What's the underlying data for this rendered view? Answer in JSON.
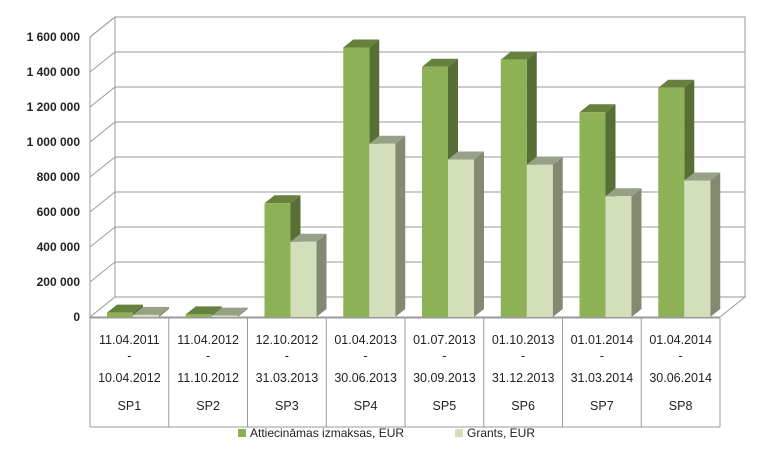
{
  "chart_data": {
    "type": "bar",
    "title": "",
    "xlabel": "",
    "ylabel": "",
    "ylim": [
      0,
      1600000
    ],
    "y_ticks": [
      "0",
      "200 000",
      "400 000",
      "600 000",
      "800 000",
      "1 000 000",
      "1 200 000",
      "1 400 000",
      "1 600 000"
    ],
    "grid": true,
    "legend_position": "bottom",
    "categories": [
      {
        "period_start": "11.04.2011",
        "sep": "-",
        "period_end": "10.04.2012",
        "code": "SP1"
      },
      {
        "period_start": "11.04.2012",
        "sep": "-",
        "period_end": "11.10.2012",
        "code": "SP2"
      },
      {
        "period_start": "12.10.2012",
        "sep": "-",
        "period_end": "31.03.2013",
        "code": "SP3"
      },
      {
        "period_start": "01.04.2013",
        "sep": "-",
        "period_end": "30.06.2013",
        "code": "SP4"
      },
      {
        "period_start": "01.07.2013",
        "sep": "-",
        "period_end": "30.09.2013",
        "code": "SP5"
      },
      {
        "period_start": "01.10.2013",
        "sep": "-",
        "period_end": "31.12.2013",
        "code": "SP6"
      },
      {
        "period_start": "01.01.2014",
        "sep": "-",
        "period_end": "31.03.2014",
        "code": "SP7"
      },
      {
        "period_start": "01.04.2014",
        "sep": "-",
        "period_end": "30.06.2014",
        "code": "SP8"
      }
    ],
    "series": [
      {
        "name": "Attiecināmas izmaksas, EUR",
        "color": "#8DB255",
        "values": [
          25000,
          15000,
          650000,
          1540000,
          1430000,
          1470000,
          1170000,
          1310000
        ]
      },
      {
        "name": "Grants, EUR",
        "color": "#D2DFBA",
        "values": [
          12000,
          8000,
          430000,
          990000,
          900000,
          870000,
          690000,
          780000
        ]
      }
    ]
  }
}
